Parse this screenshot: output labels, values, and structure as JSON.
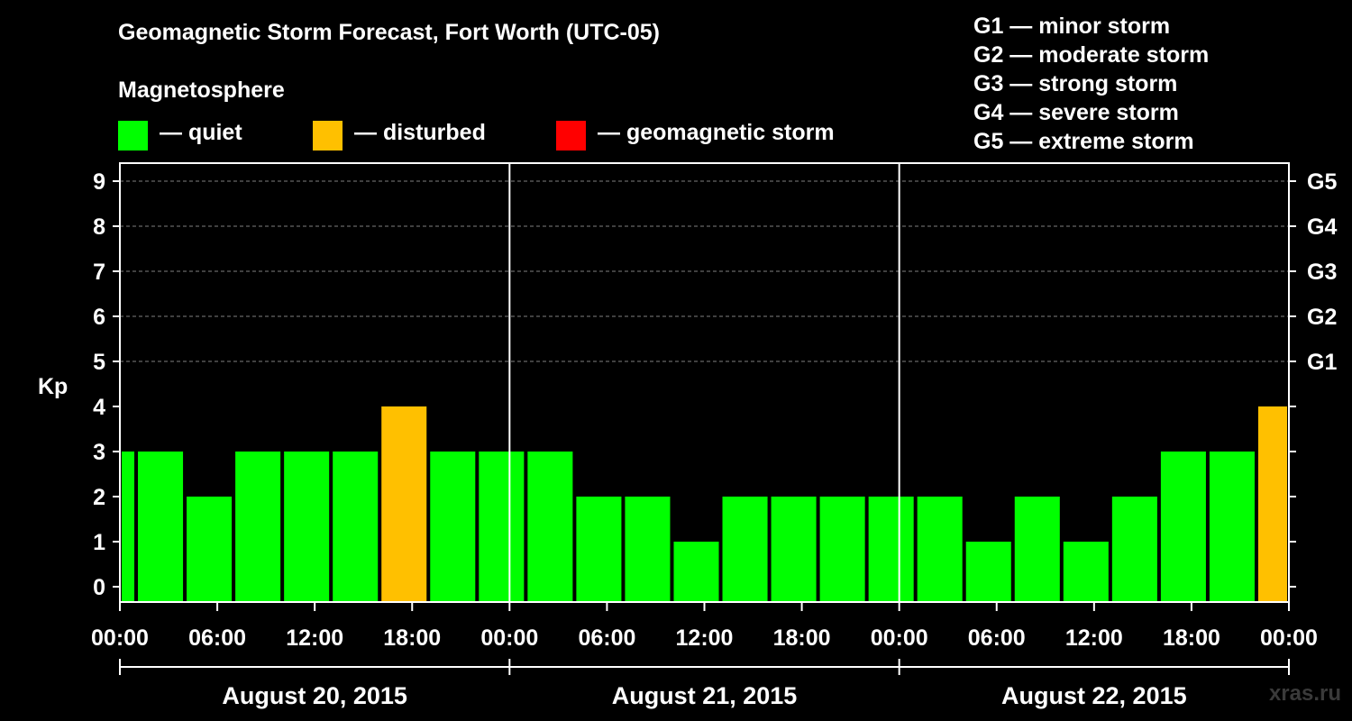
{
  "title": "Geomagnetic Storm Forecast, Fort Worth (UTC-05)",
  "legend": {
    "heading": "Magnetosphere",
    "items": [
      {
        "label": "— quiet",
        "color": "#00ff00"
      },
      {
        "label": "— disturbed",
        "color": "#ffc000"
      },
      {
        "label": "— geomagnetic storm",
        "color": "#ff0000"
      }
    ]
  },
  "storm_levels": [
    "G1 — minor storm",
    "G2 — moderate storm",
    "G3 — strong storm",
    "G4 — severe storm",
    "G5 — extreme storm"
  ],
  "watermark": "xras.ru",
  "colors": {
    "quiet": "#00ff00",
    "disturbed": "#ffc000",
    "storm": "#ff0000",
    "background": "#000000",
    "axes": "#ffffff"
  },
  "chart_data": {
    "type": "bar",
    "ylabel": "Kp",
    "ylim": [
      0,
      9
    ],
    "yticks": [
      0,
      1,
      2,
      3,
      4,
      5,
      6,
      7,
      8,
      9
    ],
    "right_axis_labels": [
      {
        "value": 5,
        "label": "G1"
      },
      {
        "value": 6,
        "label": "G2"
      },
      {
        "value": 7,
        "label": "G3"
      },
      {
        "value": 8,
        "label": "G4"
      },
      {
        "value": 9,
        "label": "G5"
      }
    ],
    "x_range_hours": [
      0,
      72
    ],
    "x_tick_labels": [
      "00:00",
      "06:00",
      "12:00",
      "18:00",
      "00:00",
      "06:00",
      "12:00",
      "18:00",
      "00:00",
      "06:00",
      "12:00",
      "18:00",
      "00:00"
    ],
    "day_labels": [
      "August 20, 2015",
      "August 21, 2015",
      "August 22, 2015"
    ],
    "grid": "dashed horizontal lines at Kp 5-9; solid vertical lines at day boundaries",
    "bars": [
      {
        "start_hour": 0,
        "end_hour": 1,
        "kp": 3,
        "status": "quiet"
      },
      {
        "start_hour": 1,
        "end_hour": 4,
        "kp": 3,
        "status": "quiet"
      },
      {
        "start_hour": 4,
        "end_hour": 7,
        "kp": 2,
        "status": "quiet"
      },
      {
        "start_hour": 7,
        "end_hour": 10,
        "kp": 3,
        "status": "quiet"
      },
      {
        "start_hour": 10,
        "end_hour": 13,
        "kp": 3,
        "status": "quiet"
      },
      {
        "start_hour": 13,
        "end_hour": 16,
        "kp": 3,
        "status": "quiet"
      },
      {
        "start_hour": 16,
        "end_hour": 19,
        "kp": 4,
        "status": "disturbed"
      },
      {
        "start_hour": 19,
        "end_hour": 22,
        "kp": 3,
        "status": "quiet"
      },
      {
        "start_hour": 22,
        "end_hour": 25,
        "kp": 3,
        "status": "quiet"
      },
      {
        "start_hour": 25,
        "end_hour": 28,
        "kp": 3,
        "status": "quiet"
      },
      {
        "start_hour": 28,
        "end_hour": 31,
        "kp": 2,
        "status": "quiet"
      },
      {
        "start_hour": 31,
        "end_hour": 34,
        "kp": 2,
        "status": "quiet"
      },
      {
        "start_hour": 34,
        "end_hour": 37,
        "kp": 1,
        "status": "quiet"
      },
      {
        "start_hour": 37,
        "end_hour": 40,
        "kp": 2,
        "status": "quiet"
      },
      {
        "start_hour": 40,
        "end_hour": 43,
        "kp": 2,
        "status": "quiet"
      },
      {
        "start_hour": 43,
        "end_hour": 46,
        "kp": 2,
        "status": "quiet"
      },
      {
        "start_hour": 46,
        "end_hour": 49,
        "kp": 2,
        "status": "quiet"
      },
      {
        "start_hour": 49,
        "end_hour": 52,
        "kp": 2,
        "status": "quiet"
      },
      {
        "start_hour": 52,
        "end_hour": 55,
        "kp": 1,
        "status": "quiet"
      },
      {
        "start_hour": 55,
        "end_hour": 58,
        "kp": 2,
        "status": "quiet"
      },
      {
        "start_hour": 58,
        "end_hour": 61,
        "kp": 1,
        "status": "quiet"
      },
      {
        "start_hour": 61,
        "end_hour": 64,
        "kp": 2,
        "status": "quiet"
      },
      {
        "start_hour": 64,
        "end_hour": 67,
        "kp": 3,
        "status": "quiet"
      },
      {
        "start_hour": 67,
        "end_hour": 70,
        "kp": 3,
        "status": "quiet"
      },
      {
        "start_hour": 70,
        "end_hour": 72,
        "kp": 4,
        "status": "disturbed"
      }
    ]
  }
}
